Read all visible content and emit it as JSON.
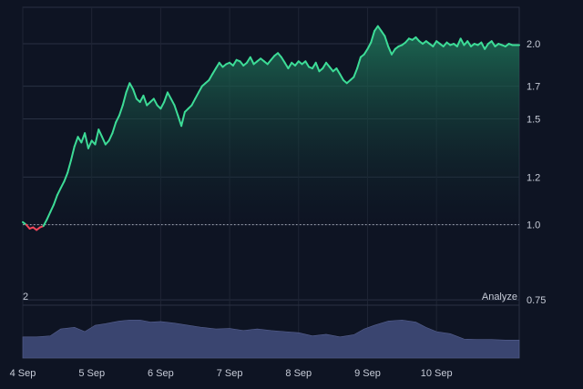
{
  "chart_data": {
    "type": "area",
    "scale": "log",
    "baseline": 1.0,
    "y_ticks": [
      2.0,
      1.7,
      1.5,
      1.2,
      1.0,
      0.75
    ],
    "y_tick_labels": [
      "2.0",
      "1.7",
      "1.5",
      "1.2",
      "1.0",
      "0.75"
    ],
    "x_ticks": [
      0,
      1,
      2,
      3,
      4,
      5,
      6
    ],
    "x_tick_labels": [
      "4 Sep",
      "5 Sep",
      "6 Sep",
      "7 Sep",
      "8 Sep",
      "9 Sep",
      "10 Sep"
    ],
    "x_range": [
      0,
      7.2
    ],
    "ylim": [
      0.6,
      2.3
    ],
    "grid": true,
    "colors": {
      "up": "#3ddc97",
      "down": "#f0475a",
      "volume": "#3a4570",
      "background": "#0e1423"
    },
    "line": [
      [
        0.0,
        1.01
      ],
      [
        0.05,
        1.0
      ],
      [
        0.1,
        0.985
      ],
      [
        0.15,
        0.99
      ],
      [
        0.2,
        0.98
      ],
      [
        0.25,
        0.99
      ],
      [
        0.3,
        0.995
      ],
      [
        0.35,
        1.02
      ],
      [
        0.4,
        1.05
      ],
      [
        0.45,
        1.08
      ],
      [
        0.5,
        1.12
      ],
      [
        0.55,
        1.15
      ],
      [
        0.6,
        1.18
      ],
      [
        0.65,
        1.22
      ],
      [
        0.7,
        1.28
      ],
      [
        0.75,
        1.35
      ],
      [
        0.8,
        1.4
      ],
      [
        0.85,
        1.37
      ],
      [
        0.9,
        1.42
      ],
      [
        0.95,
        1.34
      ],
      [
        1.0,
        1.38
      ],
      [
        1.05,
        1.36
      ],
      [
        1.1,
        1.44
      ],
      [
        1.15,
        1.4
      ],
      [
        1.2,
        1.36
      ],
      [
        1.25,
        1.38
      ],
      [
        1.3,
        1.42
      ],
      [
        1.35,
        1.48
      ],
      [
        1.4,
        1.52
      ],
      [
        1.45,
        1.58
      ],
      [
        1.5,
        1.66
      ],
      [
        1.55,
        1.72
      ],
      [
        1.6,
        1.68
      ],
      [
        1.65,
        1.62
      ],
      [
        1.7,
        1.6
      ],
      [
        1.75,
        1.64
      ],
      [
        1.8,
        1.58
      ],
      [
        1.85,
        1.6
      ],
      [
        1.9,
        1.62
      ],
      [
        1.95,
        1.58
      ],
      [
        2.0,
        1.56
      ],
      [
        2.05,
        1.6
      ],
      [
        2.1,
        1.66
      ],
      [
        2.15,
        1.62
      ],
      [
        2.2,
        1.58
      ],
      [
        2.25,
        1.52
      ],
      [
        2.3,
        1.46
      ],
      [
        2.35,
        1.54
      ],
      [
        2.4,
        1.56
      ],
      [
        2.45,
        1.58
      ],
      [
        2.5,
        1.62
      ],
      [
        2.55,
        1.66
      ],
      [
        2.6,
        1.7
      ],
      [
        2.65,
        1.72
      ],
      [
        2.7,
        1.74
      ],
      [
        2.75,
        1.78
      ],
      [
        2.8,
        1.82
      ],
      [
        2.85,
        1.86
      ],
      [
        2.9,
        1.83
      ],
      [
        2.95,
        1.85
      ],
      [
        3.0,
        1.86
      ],
      [
        3.05,
        1.84
      ],
      [
        3.1,
        1.88
      ],
      [
        3.15,
        1.87
      ],
      [
        3.2,
        1.84
      ],
      [
        3.25,
        1.86
      ],
      [
        3.3,
        1.9
      ],
      [
        3.35,
        1.85
      ],
      [
        3.4,
        1.87
      ],
      [
        3.45,
        1.89
      ],
      [
        3.5,
        1.87
      ],
      [
        3.55,
        1.85
      ],
      [
        3.6,
        1.88
      ],
      [
        3.65,
        1.91
      ],
      [
        3.7,
        1.93
      ],
      [
        3.75,
        1.9
      ],
      [
        3.8,
        1.86
      ],
      [
        3.85,
        1.82
      ],
      [
        3.9,
        1.86
      ],
      [
        3.95,
        1.84
      ],
      [
        4.0,
        1.87
      ],
      [
        4.05,
        1.85
      ],
      [
        4.1,
        1.87
      ],
      [
        4.15,
        1.83
      ],
      [
        4.2,
        1.82
      ],
      [
        4.25,
        1.86
      ],
      [
        4.3,
        1.8
      ],
      [
        4.35,
        1.82
      ],
      [
        4.4,
        1.86
      ],
      [
        4.45,
        1.83
      ],
      [
        4.5,
        1.8
      ],
      [
        4.55,
        1.82
      ],
      [
        4.6,
        1.78
      ],
      [
        4.65,
        1.74
      ],
      [
        4.7,
        1.72
      ],
      [
        4.75,
        1.74
      ],
      [
        4.8,
        1.76
      ],
      [
        4.85,
        1.82
      ],
      [
        4.9,
        1.9
      ],
      [
        4.95,
        1.92
      ],
      [
        5.0,
        1.96
      ],
      [
        5.05,
        2.01
      ],
      [
        5.1,
        2.1
      ],
      [
        5.15,
        2.14
      ],
      [
        5.2,
        2.1
      ],
      [
        5.25,
        2.06
      ],
      [
        5.3,
        1.98
      ],
      [
        5.35,
        1.92
      ],
      [
        5.4,
        1.96
      ],
      [
        5.45,
        1.98
      ],
      [
        5.5,
        1.99
      ],
      [
        5.55,
        2.01
      ],
      [
        5.6,
        2.04
      ],
      [
        5.65,
        2.03
      ],
      [
        5.7,
        2.05
      ],
      [
        5.75,
        2.02
      ],
      [
        5.8,
        2.0
      ],
      [
        5.85,
        2.02
      ],
      [
        5.9,
        2.0
      ],
      [
        5.95,
        1.98
      ],
      [
        6.0,
        2.02
      ],
      [
        6.05,
        2.0
      ],
      [
        6.1,
        1.98
      ],
      [
        6.15,
        2.01
      ],
      [
        6.2,
        1.99
      ],
      [
        6.25,
        2.0
      ],
      [
        6.3,
        1.98
      ],
      [
        6.35,
        2.04
      ],
      [
        6.4,
        1.99
      ],
      [
        6.45,
        2.02
      ],
      [
        6.5,
        1.98
      ],
      [
        6.55,
        2.0
      ],
      [
        6.6,
        1.99
      ],
      [
        6.65,
        2.01
      ],
      [
        6.7,
        1.96
      ],
      [
        6.75,
        2.0
      ],
      [
        6.8,
        2.02
      ],
      [
        6.85,
        1.98
      ],
      [
        6.9,
        2.0
      ],
      [
        6.95,
        1.99
      ],
      [
        7.0,
        1.98
      ],
      [
        7.05,
        2.0
      ],
      [
        7.1,
        1.99
      ],
      [
        7.2,
        1.99
      ]
    ],
    "volume": [
      [
        0.0,
        0.4
      ],
      [
        0.2,
        0.4
      ],
      [
        0.4,
        0.42
      ],
      [
        0.55,
        0.55
      ],
      [
        0.75,
        0.58
      ],
      [
        0.9,
        0.5
      ],
      [
        1.05,
        0.62
      ],
      [
        1.2,
        0.65
      ],
      [
        1.4,
        0.7
      ],
      [
        1.55,
        0.72
      ],
      [
        1.7,
        0.72
      ],
      [
        1.85,
        0.68
      ],
      [
        2.0,
        0.69
      ],
      [
        2.2,
        0.66
      ],
      [
        2.4,
        0.62
      ],
      [
        2.6,
        0.58
      ],
      [
        2.8,
        0.55
      ],
      [
        3.0,
        0.56
      ],
      [
        3.2,
        0.52
      ],
      [
        3.4,
        0.55
      ],
      [
        3.6,
        0.52
      ],
      [
        3.8,
        0.5
      ],
      [
        4.0,
        0.48
      ],
      [
        4.2,
        0.42
      ],
      [
        4.4,
        0.45
      ],
      [
        4.6,
        0.4
      ],
      [
        4.8,
        0.44
      ],
      [
        4.95,
        0.55
      ],
      [
        5.1,
        0.62
      ],
      [
        5.3,
        0.7
      ],
      [
        5.5,
        0.72
      ],
      [
        5.7,
        0.68
      ],
      [
        5.85,
        0.58
      ],
      [
        6.0,
        0.5
      ],
      [
        6.2,
        0.46
      ],
      [
        6.4,
        0.36
      ],
      [
        6.6,
        0.35
      ],
      [
        6.8,
        0.35
      ],
      [
        7.0,
        0.34
      ],
      [
        7.2,
        0.34
      ]
    ],
    "volume_scale_label": "2",
    "brand_label": "Analyze"
  }
}
